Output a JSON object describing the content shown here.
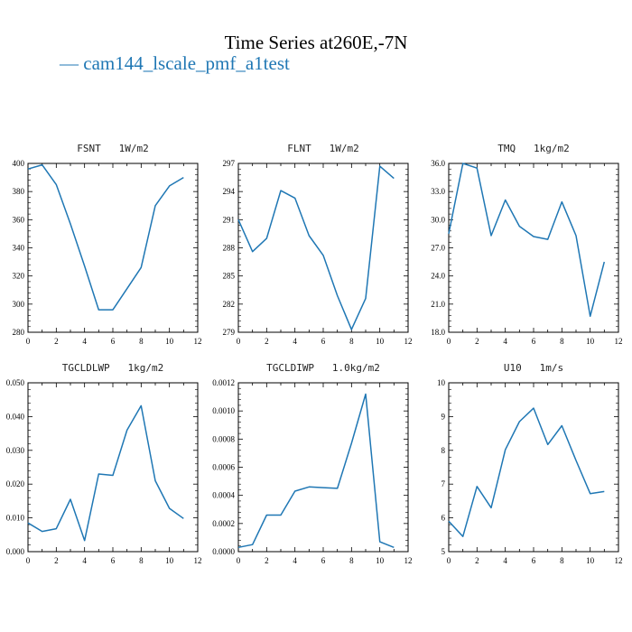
{
  "figure": {
    "title": "Time Series at260E,-7N",
    "legend": "— cam144_lscale_pmf_a1test",
    "series_color": "#1f77b4"
  },
  "chart_data": [
    {
      "type": "line",
      "title": "FSNT   1W/m2",
      "x": [
        0,
        1,
        2,
        3,
        4,
        5,
        6,
        7,
        8,
        9,
        10,
        11
      ],
      "series": [
        {
          "values": [
            396,
            399,
            385,
            357,
            327,
            296,
            296,
            311,
            326,
            370,
            384,
            390
          ]
        }
      ],
      "xlim": [
        0,
        12
      ],
      "xticks": [
        0,
        2,
        4,
        6,
        8,
        10,
        12
      ],
      "ylim": [
        280,
        400
      ],
      "yticks": [
        280,
        300,
        320,
        340,
        360,
        380,
        400
      ],
      "ydecimals": 0
    },
    {
      "type": "line",
      "title": "FLNT   1W/m2",
      "x": [
        0,
        1,
        2,
        3,
        4,
        5,
        6,
        7,
        8,
        9,
        10,
        11
      ],
      "series": [
        {
          "values": [
            291.0,
            287.6,
            289.0,
            294.1,
            293.3,
            289.3,
            287.2,
            282.9,
            279.3,
            282.6,
            296.7,
            295.4
          ]
        }
      ],
      "xlim": [
        0,
        12
      ],
      "xticks": [
        0,
        2,
        4,
        6,
        8,
        10,
        12
      ],
      "ylim": [
        279,
        297
      ],
      "yticks": [
        279,
        282,
        285,
        288,
        291,
        294,
        297
      ],
      "ydecimals": 0
    },
    {
      "type": "line",
      "title": "TMQ   1kg/m2",
      "x": [
        0,
        1,
        2,
        3,
        4,
        5,
        6,
        7,
        8,
        9,
        10,
        11
      ],
      "series": [
        {
          "values": [
            28.5,
            36.0,
            35.5,
            28.3,
            32.1,
            29.3,
            28.2,
            27.9,
            31.9,
            28.3,
            19.7,
            25.5
          ]
        }
      ],
      "xlim": [
        0,
        12
      ],
      "xticks": [
        0,
        2,
        4,
        6,
        8,
        10,
        12
      ],
      "ylim": [
        18,
        36
      ],
      "yticks": [
        18,
        21,
        24,
        27,
        30,
        33,
        36
      ],
      "ydecimals": 1
    },
    {
      "type": "line",
      "title": "TGCLDLWP   1kg/m2",
      "x": [
        0,
        1,
        2,
        3,
        4,
        5,
        6,
        7,
        8,
        9,
        10,
        11
      ],
      "series": [
        {
          "values": [
            0.0085,
            0.006,
            0.0068,
            0.0155,
            0.0033,
            0.023,
            0.0226,
            0.036,
            0.0432,
            0.021,
            0.0128,
            0.0098
          ]
        }
      ],
      "xlim": [
        0,
        12
      ],
      "xticks": [
        0,
        2,
        4,
        6,
        8,
        10,
        12
      ],
      "ylim": [
        0,
        0.05
      ],
      "yticks": [
        0,
        0.01,
        0.02,
        0.03,
        0.04,
        0.05
      ],
      "ydecimals": 3
    },
    {
      "type": "line",
      "title": "TGCLDIWP   1.0kg/m2",
      "x": [
        0,
        1,
        2,
        3,
        4,
        5,
        6,
        7,
        8,
        9,
        10,
        11
      ],
      "series": [
        {
          "values": [
            3e-05,
            5e-05,
            0.00026,
            0.00026,
            0.00043,
            0.00046,
            0.000455,
            0.00045,
            0.00077,
            0.00112,
            7e-05,
            3e-05
          ]
        }
      ],
      "xlim": [
        0,
        12
      ],
      "xticks": [
        0,
        2,
        4,
        6,
        8,
        10,
        12
      ],
      "ylim": [
        0,
        0.0012
      ],
      "yticks": [
        0,
        0.0002,
        0.0004,
        0.0006,
        0.0008,
        0.001,
        0.0012
      ],
      "ydecimals": 4
    },
    {
      "type": "line",
      "title": "U10   1m/s",
      "x": [
        0,
        1,
        2,
        3,
        4,
        5,
        6,
        7,
        8,
        9,
        10,
        11
      ],
      "series": [
        {
          "values": [
            5.9,
            5.45,
            6.93,
            6.3,
            8.02,
            8.85,
            9.25,
            8.17,
            8.73,
            7.7,
            6.72,
            6.78
          ]
        }
      ],
      "xlim": [
        0,
        12
      ],
      "xticks": [
        0,
        2,
        4,
        6,
        8,
        10,
        12
      ],
      "ylim": [
        5,
        10
      ],
      "yticks": [
        5,
        6,
        7,
        8,
        9,
        10
      ],
      "ydecimals": 0
    }
  ]
}
